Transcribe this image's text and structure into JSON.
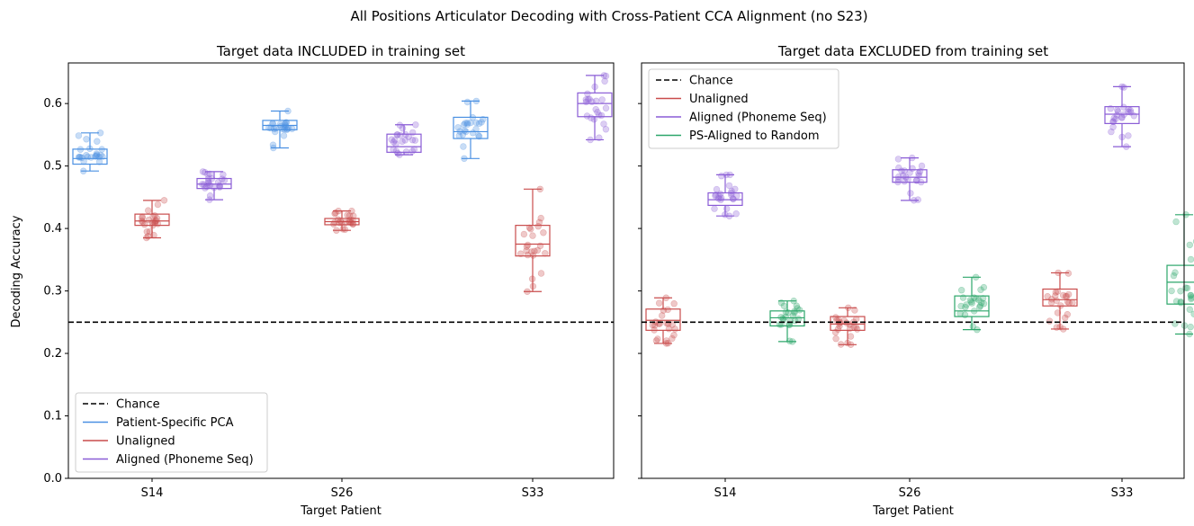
{
  "figure_title": "All Positions Articulator Decoding with Cross-Patient CCA Alignment (no S23)",
  "colors": {
    "Patient-Specific PCA": "#4a90e2",
    "Unaligned": "#c94c4c",
    "Aligned (Phoneme Seq)": "#8a5cd6",
    "PS-Aligned to Random": "#2ca66a",
    "Chance": "#000000"
  },
  "chart_data": [
    {
      "type": "box",
      "title": "Target data INCLUDED in training set",
      "xlabel": "Target Patient",
      "ylabel": "Decoding Accuracy",
      "ylim": [
        0,
        0.665
      ],
      "yticks": [
        "0.0",
        "0.1",
        "0.2",
        "0.3",
        "0.4",
        "0.5",
        "0.6"
      ],
      "categories": [
        "S14",
        "S26",
        "S33"
      ],
      "chance": 0.25,
      "legend_position": "lower-left",
      "legend": [
        "Chance",
        "Patient-Specific PCA",
        "Unaligned",
        "Aligned (Phoneme Seq)"
      ],
      "series": [
        {
          "name": "Patient-Specific PCA",
          "boxes": [
            {
              "min": 0.492,
              "q1": 0.503,
              "median": 0.512,
              "q3": 0.527,
              "max": 0.553
            },
            {
              "min": 0.529,
              "q1": 0.558,
              "median": 0.565,
              "q3": 0.573,
              "max": 0.588
            },
            {
              "min": 0.512,
              "q1": 0.544,
              "median": 0.555,
              "q3": 0.578,
              "max": 0.604
            }
          ]
        },
        {
          "name": "Unaligned",
          "boxes": [
            {
              "min": 0.385,
              "q1": 0.405,
              "median": 0.412,
              "q3": 0.423,
              "max": 0.445
            },
            {
              "min": 0.397,
              "q1": 0.406,
              "median": 0.411,
              "q3": 0.416,
              "max": 0.428
            },
            {
              "min": 0.299,
              "q1": 0.356,
              "median": 0.375,
              "q3": 0.405,
              "max": 0.463
            }
          ]
        },
        {
          "name": "Aligned (Phoneme Seq)",
          "boxes": [
            {
              "min": 0.446,
              "q1": 0.464,
              "median": 0.471,
              "q3": 0.48,
              "max": 0.491
            },
            {
              "min": 0.518,
              "q1": 0.522,
              "median": 0.531,
              "q3": 0.551,
              "max": 0.566
            },
            {
              "min": 0.542,
              "q1": 0.579,
              "median": 0.6,
              "q3": 0.617,
              "max": 0.645
            }
          ]
        }
      ]
    },
    {
      "type": "box",
      "title": "Target data EXCLUDED from training set",
      "xlabel": "Target Patient",
      "ylabel": "",
      "ylim": [
        0,
        0.665
      ],
      "categories": [
        "S14",
        "S26",
        "S33"
      ],
      "chance": 0.25,
      "legend_position": "upper-left",
      "legend": [
        "Chance",
        "Unaligned",
        "Aligned (Phoneme Seq)",
        "PS-Aligned to Random"
      ],
      "series": [
        {
          "name": "Unaligned",
          "boxes": [
            {
              "min": 0.216,
              "q1": 0.237,
              "median": 0.253,
              "q3": 0.271,
              "max": 0.289
            },
            {
              "min": 0.214,
              "q1": 0.237,
              "median": 0.247,
              "q3": 0.259,
              "max": 0.273
            },
            {
              "min": 0.239,
              "q1": 0.276,
              "median": 0.286,
              "q3": 0.303,
              "max": 0.329
            }
          ]
        },
        {
          "name": "Aligned (Phoneme Seq)",
          "boxes": [
            {
              "min": 0.42,
              "q1": 0.437,
              "median": 0.446,
              "q3": 0.457,
              "max": 0.486
            },
            {
              "min": 0.445,
              "q1": 0.474,
              "median": 0.482,
              "q3": 0.494,
              "max": 0.513
            },
            {
              "min": 0.531,
              "q1": 0.568,
              "median": 0.583,
              "q3": 0.595,
              "max": 0.627
            }
          ]
        },
        {
          "name": "PS-Aligned to Random",
          "boxes": [
            {
              "min": 0.219,
              "q1": 0.244,
              "median": 0.257,
              "q3": 0.268,
              "max": 0.284
            },
            {
              "min": 0.238,
              "q1": 0.259,
              "median": 0.268,
              "q3": 0.292,
              "max": 0.322
            },
            {
              "min": 0.231,
              "q1": 0.279,
              "median": 0.314,
              "q3": 0.341,
              "max": 0.422
            }
          ]
        }
      ]
    }
  ]
}
